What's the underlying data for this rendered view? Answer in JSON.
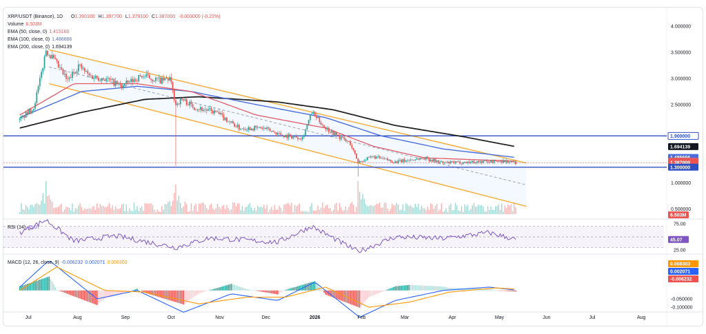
{
  "legend": {
    "title": "XRP/USDT (Binance), 1D",
    "o_label": "O",
    "o": "1.390100",
    "h_label": "H",
    "h": "1.397700",
    "l_label": "L",
    "l": "1.379100",
    "c_label": "C",
    "c": "1.387000",
    "change": "-0.003000 (-0.22%)",
    "volume_label": "Volume",
    "volume": "6.503M",
    "ema50_label": "EMA (50, close, 0)",
    "ema50": "1.415160",
    "ema100_label": "EMA (100, close, 0)",
    "ema100": "1.486666",
    "ema200_label": "EMA (200, close, 0)",
    "ema200": "1.694139"
  },
  "rsi_legend": {
    "label": "RSI (14)",
    "value": "45.07"
  },
  "macd_legend": {
    "label": "MACD (12, 26, close, 9)",
    "v1": "-0.006232",
    "v2": "0.002071",
    "v3": "0.008303"
  },
  "colors": {
    "up": "#26a69a",
    "down": "#ef5350",
    "ema50": "#e05a66",
    "ema100": "#4a6fdc",
    "ema200": "#222222",
    "channel": "#f5b041",
    "hline": "#2f4ec4",
    "rsi": "#7e57c2",
    "macd": "#2962ff",
    "signal": "#ff9800"
  },
  "chart_data": [
    {
      "type": "candlestick",
      "title": "XRP/USDT (Binance), 1D",
      "x": [
        "Jul",
        "Aug",
        "Sep",
        "Oct",
        "Nov",
        "Dec",
        "2026",
        "Feb",
        "Mar",
        "Apr",
        "May",
        "Jun",
        "Jul",
        "Aug"
      ],
      "y_ticks": [
        "4.000000",
        "3.500000",
        "3.000000",
        "2.500000",
        "1.000000",
        "0.500000"
      ],
      "ylim": [
        0.4,
        4.2
      ],
      "price_path": [
        [
          "2025-07-01",
          2.2
        ],
        [
          "2025-07-10",
          2.45
        ],
        [
          "2025-07-14",
          2.95
        ],
        [
          "2025-07-18",
          3.55
        ],
        [
          "2025-07-22",
          3.4
        ],
        [
          "2025-08-01",
          2.95
        ],
        [
          "2025-08-08",
          3.25
        ],
        [
          "2025-08-15",
          3.05
        ],
        [
          "2025-08-25",
          3.0
        ],
        [
          "2025-09-05",
          2.85
        ],
        [
          "2025-09-18",
          3.05
        ],
        [
          "2025-10-01",
          2.95
        ],
        [
          "2025-10-06",
          3.0
        ],
        [
          "2025-10-10",
          2.5
        ],
        [
          "2025-10-14",
          2.6
        ],
        [
          "2025-10-22",
          2.45
        ],
        [
          "2025-11-05",
          2.35
        ],
        [
          "2025-11-20",
          2.05
        ],
        [
          "2025-12-05",
          2.05
        ],
        [
          "2025-12-20",
          1.9
        ],
        [
          "2025-12-31",
          1.87
        ],
        [
          "2026-01-06",
          2.35
        ],
        [
          "2026-01-15",
          2.05
        ],
        [
          "2026-01-31",
          1.75
        ],
        [
          "2026-02-05",
          1.4
        ],
        [
          "2026-02-15",
          1.5
        ],
        [
          "2026-03-01",
          1.4
        ],
        [
          "2026-03-20",
          1.48
        ],
        [
          "2026-04-01",
          1.38
        ],
        [
          "2026-04-20",
          1.4
        ],
        [
          "2026-05-10",
          1.42
        ],
        [
          "2026-05-18",
          1.387
        ]
      ],
      "price_labels": [
        {
          "value": 1.9,
          "text": "1.900000",
          "color": "#2f4ec4",
          "style": "outline"
        },
        {
          "value": 1.694139,
          "text": "1.694139",
          "color": "#131722",
          "style": "filled"
        },
        {
          "value": 1.486666,
          "text": "1.486666",
          "color": "#4a6fdc",
          "style": "filled"
        },
        {
          "value": 1.41516,
          "text": "1.415160",
          "color": "#e05a66",
          "style": "filled"
        },
        {
          "value": 1.387,
          "text": "1.387000",
          "color": "#ef5350",
          "style": "filled"
        },
        {
          "value": 1.3,
          "text": "1.300000",
          "color": "#2f4ec4",
          "style": "filled"
        }
      ],
      "horizontal_levels": [
        1.9,
        1.3
      ],
      "ema50_path": [
        [
          "2025-07-01",
          2.3
        ],
        [
          "2025-08-05",
          2.9
        ],
        [
          "2025-09-15",
          2.9
        ],
        [
          "2025-10-20",
          2.75
        ],
        [
          "2025-12-01",
          2.3
        ],
        [
          "2026-01-15",
          2.05
        ],
        [
          "2026-02-15",
          1.7
        ],
        [
          "2026-03-20",
          1.48
        ],
        [
          "2026-05-18",
          1.415
        ]
      ],
      "ema100_path": [
        [
          "2025-07-01",
          2.25
        ],
        [
          "2025-08-10",
          2.75
        ],
        [
          "2025-09-15",
          2.85
        ],
        [
          "2025-10-20",
          2.75
        ],
        [
          "2025-12-01",
          2.5
        ],
        [
          "2026-01-15",
          2.25
        ],
        [
          "2026-02-20",
          1.9
        ],
        [
          "2026-04-01",
          1.65
        ],
        [
          "2026-05-18",
          1.487
        ]
      ],
      "ema200_path": [
        [
          "2025-07-01",
          2.05
        ],
        [
          "2025-08-10",
          2.35
        ],
        [
          "2025-09-20",
          2.6
        ],
        [
          "2025-10-25",
          2.65
        ],
        [
          "2025-12-15",
          2.55
        ],
        [
          "2026-01-20",
          2.4
        ],
        [
          "2026-03-01",
          2.1
        ],
        [
          "2026-04-15",
          1.88
        ],
        [
          "2026-05-18",
          1.694
        ]
      ],
      "channel_upper": [
        [
          "2025-07-20",
          3.55
        ],
        [
          "2026-05-25",
          1.38
        ]
      ],
      "channel_lower": [
        [
          "2025-07-20",
          2.9
        ],
        [
          "2026-05-25",
          0.55
        ]
      ],
      "channel_mid": [
        [
          "2025-07-20",
          3.22
        ],
        [
          "2026-05-25",
          0.96
        ]
      ],
      "volume": {
        "label": "Volume",
        "last": "6.503M",
        "spikes": [
          [
            "2025-07-18",
            1.0
          ],
          [
            "2025-10-10",
            0.9
          ],
          [
            "2026-02-05",
            1.0
          ]
        ]
      }
    },
    {
      "type": "line",
      "title": "RSI (14)",
      "y_ticks": [
        "75.00",
        "25.00"
      ],
      "ylim": [
        20,
        80
      ],
      "bands": [
        30,
        50,
        70
      ],
      "last": "45.07",
      "path": [
        [
          "2025-07-01",
          58
        ],
        [
          "2025-07-18",
          82
        ],
        [
          "2025-08-05",
          42
        ],
        [
          "2025-09-01",
          52
        ],
        [
          "2025-10-10",
          30
        ],
        [
          "2025-11-01",
          48
        ],
        [
          "2025-12-15",
          40
        ],
        [
          "2026-01-06",
          70
        ],
        [
          "2026-02-05",
          22
        ],
        [
          "2026-03-01",
          50
        ],
        [
          "2026-04-01",
          47
        ],
        [
          "2026-05-01",
          58
        ],
        [
          "2026-05-18",
          45.07
        ]
      ]
    },
    {
      "type": "bar",
      "title": "MACD (12, 26, close, 9)",
      "y_ticks": [
        "-0.050000",
        "-0.100000"
      ],
      "ylim": [
        -0.12,
        0.2
      ],
      "last": [
        "0.008303",
        "0.002071",
        "-0.006232"
      ],
      "macd_path": [
        [
          "2025-07-01",
          0.02
        ],
        [
          "2025-07-20",
          0.18
        ],
        [
          "2025-08-20",
          -0.05
        ],
        [
          "2025-09-15",
          0.0
        ],
        [
          "2025-10-15",
          -0.13
        ],
        [
          "2025-11-15",
          -0.02
        ],
        [
          "2025-12-15",
          -0.06
        ],
        [
          "2026-01-08",
          0.05
        ],
        [
          "2026-02-06",
          -0.16
        ],
        [
          "2026-03-01",
          -0.06
        ],
        [
          "2026-04-01",
          0.0
        ],
        [
          "2026-05-01",
          0.02
        ],
        [
          "2026-05-18",
          0.002
        ]
      ],
      "signal_path": [
        [
          "2025-07-01",
          0.0
        ],
        [
          "2025-07-25",
          0.14
        ],
        [
          "2025-08-25",
          0.0
        ],
        [
          "2025-09-20",
          -0.01
        ],
        [
          "2025-10-25",
          -0.08
        ],
        [
          "2025-11-25",
          -0.04
        ],
        [
          "2025-12-20",
          -0.04
        ],
        [
          "2026-01-15",
          0.02
        ],
        [
          "2026-02-12",
          -0.1
        ],
        [
          "2026-03-10",
          -0.07
        ],
        [
          "2026-04-05",
          -0.01
        ],
        [
          "2026-05-05",
          0.015
        ],
        [
          "2026-05-18",
          0.008
        ]
      ]
    }
  ]
}
